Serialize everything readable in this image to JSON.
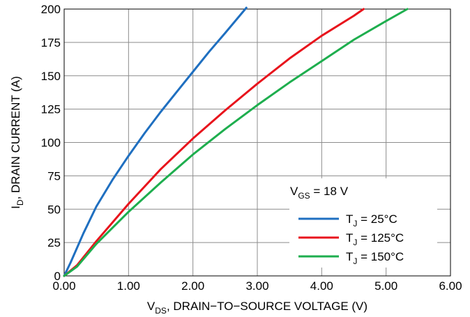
{
  "chart_data": {
    "type": "line",
    "xlabel": {
      "main": "V",
      "sub": "DS",
      "rest": ", DRAIN−TO−SOURCE VOLTAGE (V)"
    },
    "ylabel": {
      "main": "I",
      "sub": "D",
      "rest": ", DRAIN CURRENT (A)"
    },
    "xlim": [
      0,
      6
    ],
    "ylim": [
      0,
      200
    ],
    "xticks": [
      0,
      1,
      2,
      3,
      4,
      5,
      6
    ],
    "xtick_labels": [
      "0.00",
      "1.00",
      "2.00",
      "3.00",
      "4.00",
      "5.00",
      "6.00"
    ],
    "yticks": [
      0,
      25,
      50,
      75,
      100,
      125,
      150,
      175,
      200
    ],
    "ytick_labels": [
      "0",
      "25",
      "50",
      "75",
      "100",
      "125",
      "150",
      "175",
      "200"
    ],
    "grid": true,
    "legend": {
      "placement": "bottom-right",
      "title": {
        "main": "V",
        "sub": "GS",
        "rest": " = 18 V"
      }
    },
    "series": [
      {
        "name": "T_J = 25°C",
        "label": {
          "main": "T",
          "sub": "J",
          "rest": " = 25°C"
        },
        "color": "#1f6fc0",
        "x": [
          0,
          0.1,
          0.3,
          0.5,
          0.75,
          1.0,
          1.25,
          1.5,
          1.75,
          2.0,
          2.25,
          2.5,
          2.83
        ],
        "y": [
          0,
          10,
          32,
          52,
          72,
          90,
          107,
          123,
          138,
          153,
          168,
          182,
          201
        ]
      },
      {
        "name": "T_J = 125°C",
        "label": {
          "main": "T",
          "sub": "J",
          "rest": " = 125°C"
        },
        "color": "#e8141c",
        "x": [
          0,
          0.2,
          0.5,
          1.0,
          1.5,
          2.0,
          2.5,
          3.0,
          3.5,
          4.0,
          4.5,
          4.65
        ],
        "y": [
          0,
          8,
          26,
          54,
          80,
          103,
          124,
          144,
          163,
          180,
          195,
          200
        ]
      },
      {
        "name": "T_J = 150°C",
        "label": {
          "main": "T",
          "sub": "J",
          "rest": " = 150°C"
        },
        "color": "#1eae4e",
        "x": [
          0,
          0.2,
          0.5,
          1.0,
          1.5,
          2.0,
          2.5,
          3.0,
          3.5,
          4.0,
          4.5,
          5.0,
          5.33
        ],
        "y": [
          0,
          7,
          24,
          48,
          70,
          91,
          110,
          128,
          145,
          161,
          177,
          191,
          200
        ]
      }
    ]
  }
}
